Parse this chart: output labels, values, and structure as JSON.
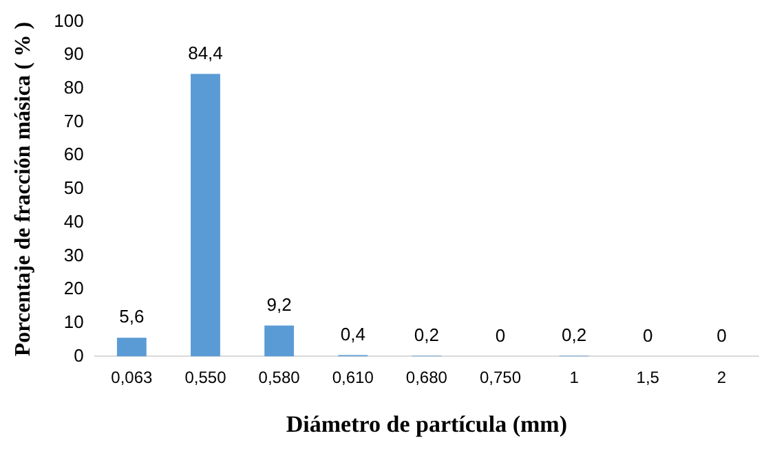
{
  "chart_data": {
    "type": "bar",
    "xlabel": "Diámetro de partícula (mm)",
    "ylabel": "Porcentaje de fracción másica ( % )",
    "categories": [
      "0,063",
      "0,550",
      "0,580",
      "0,610",
      "0,680",
      "0,750",
      "1",
      "1,5",
      "2"
    ],
    "values": [
      5.6,
      84.4,
      9.2,
      0.4,
      0.2,
      0,
      0.2,
      0,
      0
    ],
    "value_labels": [
      "5,6",
      "84,4",
      "9,2",
      "0,4",
      "0,2",
      "0",
      "0,2",
      "0",
      "0"
    ],
    "color": "#5b9bd5",
    "ylim": [
      0,
      100
    ],
    "yticks": [
      0,
      10,
      20,
      30,
      40,
      50,
      60,
      70,
      80,
      90,
      100
    ],
    "grid": false,
    "legend": false
  }
}
